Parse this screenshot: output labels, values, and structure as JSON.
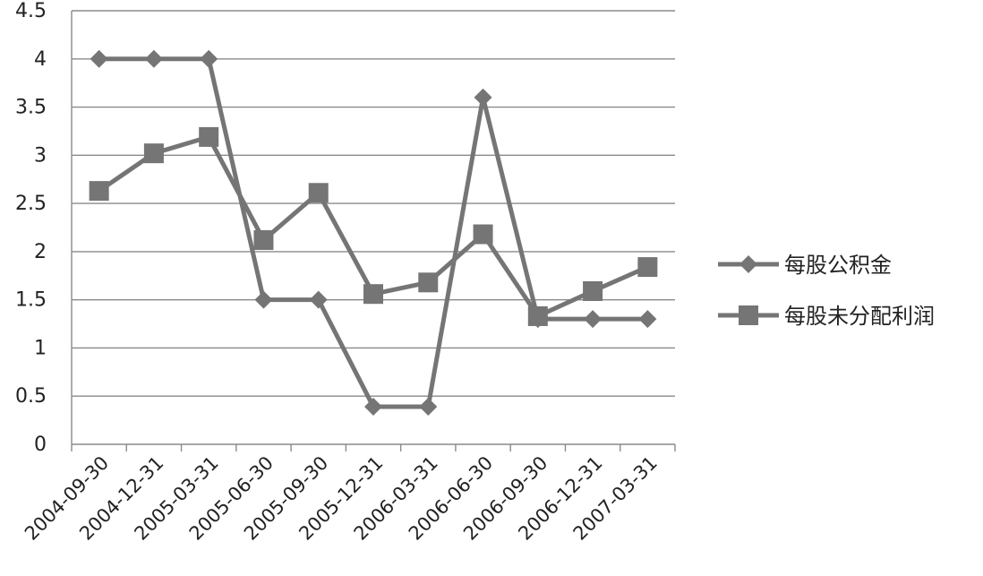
{
  "chart_data": {
    "type": "line",
    "categories": [
      "2004-09-30",
      "2004-12-31",
      "2005-03-31",
      "2005-06-30",
      "2005-09-30",
      "2005-12-31",
      "2006-03-31",
      "2006-06-30",
      "2006-09-30",
      "2006-12-31",
      "2007-03-31"
    ],
    "series": [
      {
        "name": "每股公积金",
        "marker": "diamond",
        "color": "#757575",
        "values": [
          4.0,
          4.0,
          4.0,
          1.5,
          1.5,
          0.39,
          0.39,
          3.6,
          1.3,
          1.3,
          1.3
        ]
      },
      {
        "name": "每股未分配利润",
        "marker": "square",
        "color": "#757575",
        "values": [
          2.63,
          3.02,
          3.19,
          2.12,
          2.61,
          1.56,
          1.68,
          2.18,
          1.33,
          1.59,
          1.84
        ]
      }
    ],
    "ylim": [
      0,
      4.5
    ],
    "yticks": [
      "0",
      "0.5",
      "1",
      "1.5",
      "2",
      "2.5",
      "3",
      "3.5",
      "4",
      "4.5"
    ],
    "grid": true,
    "legend_position": "right"
  }
}
